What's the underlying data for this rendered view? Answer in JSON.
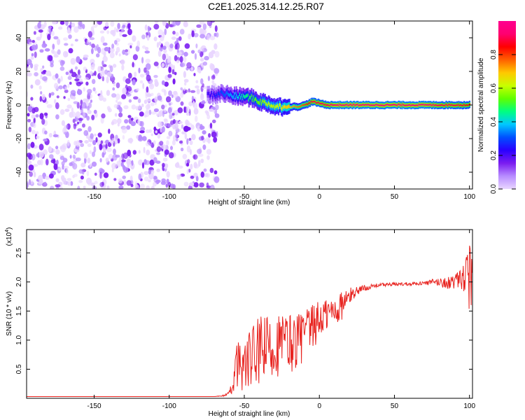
{
  "title": "C2E1.2025.314.12.25.R07",
  "colors": {
    "snr_line": "#e8231f",
    "noise": "#7a1cf0",
    "colormap": [
      "#e9d6ff",
      "#b88cff",
      "#7a1cf0",
      "#2a00ff",
      "#0050ff",
      "#00c8ff",
      "#00ff80",
      "#60ff00",
      "#c8ff00",
      "#ffc800",
      "#ff6000",
      "#ff0000",
      "#ff0070",
      "#ff0090"
    ]
  },
  "chart_data": [
    {
      "type": "heatmap",
      "xlabel": "Height of straight line (km)",
      "ylabel": "Frequency (Hz)",
      "xlim": [
        -195,
        102
      ],
      "ylim": [
        -50,
        50
      ],
      "xticks": [
        -150,
        -100,
        -50,
        0,
        50,
        100
      ],
      "yticks": [
        -40,
        -20,
        0,
        20,
        40
      ],
      "colorbar": {
        "label": "Normalized spectral amplitude",
        "range": [
          0,
          1
        ],
        "ticks": [
          "0.0",
          "0.2",
          "0.4",
          "0.6",
          "0.8"
        ]
      },
      "grid": false,
      "noise_region_x": [
        -195,
        -70
      ],
      "ridge": {
        "x": [
          -75,
          -70,
          -65,
          -60,
          -55,
          -50,
          -45,
          -40,
          -35,
          -30,
          -25,
          -20,
          -15,
          -10,
          -5,
          0,
          5,
          10,
          20,
          30,
          40,
          50,
          60,
          70,
          80,
          90,
          100
        ],
        "y": [
          6,
          6,
          7,
          6,
          5,
          5,
          4,
          2,
          1,
          -1,
          -1,
          -1,
          -1,
          0,
          2,
          1,
          0,
          0,
          0,
          0,
          0,
          0,
          0,
          0,
          0,
          0,
          0
        ],
        "amplitude": [
          0.2,
          0.25,
          0.3,
          0.35,
          0.4,
          0.45,
          0.5,
          0.55,
          0.6,
          0.6,
          0.65,
          0.7,
          0.75,
          0.8,
          0.9,
          0.9,
          0.9,
          0.95,
          0.95,
          0.95,
          0.95,
          0.95,
          0.95,
          0.95,
          0.9,
          0.9,
          0.85
        ]
      }
    },
    {
      "type": "line",
      "xlabel": "Height of straight line (km)",
      "ylabel": "SNR (10 * v/v)",
      "scale_label": "(x10",
      "scale_exp": "4",
      "xlim": [
        -195,
        102
      ],
      "ylim": [
        0,
        2.9
      ],
      "xticks": [
        -150,
        -100,
        -50,
        0,
        50,
        100
      ],
      "yticks": [
        "0.5",
        "1.0",
        "1.5",
        "2.0",
        "2.5"
      ],
      "grid": false,
      "series": [
        {
          "x": [
            -195,
            -150,
            -100,
            -70,
            -65,
            -60,
            -57,
            -55,
            -50,
            -45,
            -40,
            -35,
            -30,
            -25,
            -20,
            -15,
            -10,
            -5,
            0,
            5,
            10,
            15,
            20,
            25,
            30,
            35,
            40,
            50,
            60,
            70,
            75,
            80,
            85,
            90,
            95,
            98,
            100,
            101
          ],
          "y": [
            0.03,
            0.03,
            0.03,
            0.03,
            0.04,
            0.08,
            0.3,
            0.6,
            0.55,
            0.7,
            0.8,
            0.85,
            0.9,
            0.95,
            0.95,
            1.0,
            1.1,
            1.2,
            1.35,
            1.45,
            1.5,
            1.6,
            1.75,
            1.85,
            1.9,
            1.92,
            1.95,
            1.96,
            1.97,
            1.98,
            1.99,
            2.0,
            1.98,
            2.0,
            2.05,
            2.1,
            2.0,
            1.5
          ],
          "spread": [
            0,
            0,
            0,
            0,
            0.01,
            0.04,
            0.2,
            0.4,
            0.45,
            0.55,
            0.6,
            0.6,
            0.55,
            0.55,
            0.55,
            0.5,
            0.45,
            0.4,
            0.35,
            0.3,
            0.3,
            0.25,
            0.15,
            0.08,
            0.05,
            0.04,
            0.03,
            0.03,
            0.03,
            0.03,
            0.06,
            0.08,
            0.1,
            0.12,
            0.18,
            0.4,
            0.8,
            1.0
          ]
        }
      ]
    }
  ]
}
